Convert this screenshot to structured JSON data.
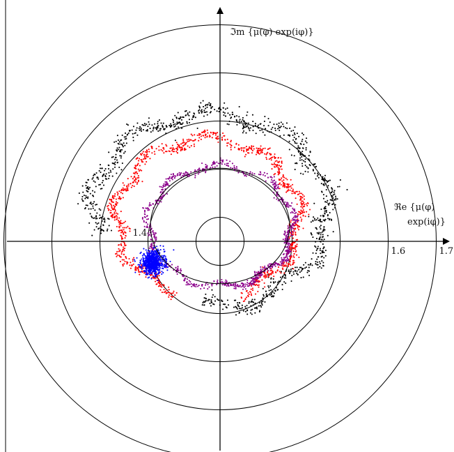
{
  "chart_data": {
    "type": "scatter",
    "title": "",
    "coordinate_system": "polar",
    "xlabel_line1": "ℜe {μ(φ)",
    "xlabel_line2": "exp(iφ)}",
    "ylabel": "ℑm {μ(φ) exp(iφ)}",
    "radial_ticks": [
      {
        "value": 1.3,
        "label": ""
      },
      {
        "value": 1.4,
        "label": "1.4"
      },
      {
        "value": 1.5,
        "label": ""
      },
      {
        "value": 1.6,
        "label": "1.6"
      },
      {
        "value": 1.7,
        "label": "1.7"
      }
    ],
    "radial_origin": 1.3,
    "radial_unit": 0.1,
    "series": [
      {
        "color": "#000000",
        "count": 1000,
        "ring_radius": 1.535,
        "ring_center": [
          -0.02,
          0.065
        ],
        "ring_radii_xy": [
          0.245,
          0.2
        ],
        "spread": 0.016,
        "angle_range_deg": [
          -95,
          195
        ]
      },
      {
        "color": "#ff0000",
        "count": 1050,
        "ring_radius": 1.485,
        "ring_center": [
          -0.025,
          0.048
        ],
        "ring_radii_xy": [
          0.19,
          0.165
        ],
        "spread": 0.013,
        "angle_range_deg": [
          -70,
          250
        ]
      },
      {
        "color": "#8b008b",
        "count": 850,
        "ring_radius": 1.445,
        "ring_center": [
          0.0,
          0.032
        ],
        "ring_radii_xy": [
          0.15,
          0.125
        ],
        "spread": 0.011,
        "angle_range_deg": [
          -90,
          360
        ]
      },
      {
        "color": "#0000ff",
        "count": 700,
        "cluster_center": [
          -0.14,
          -0.044
        ],
        "cluster_std": [
          0.012,
          0.012
        ]
      }
    ],
    "reference_curve": {
      "color": "#000000",
      "ring_radius": 1.45,
      "ring_center": [
        0.0,
        0.032
      ],
      "ring_radii_xy": [
        0.145,
        0.12
      ]
    },
    "grid": false,
    "legend": "none"
  }
}
